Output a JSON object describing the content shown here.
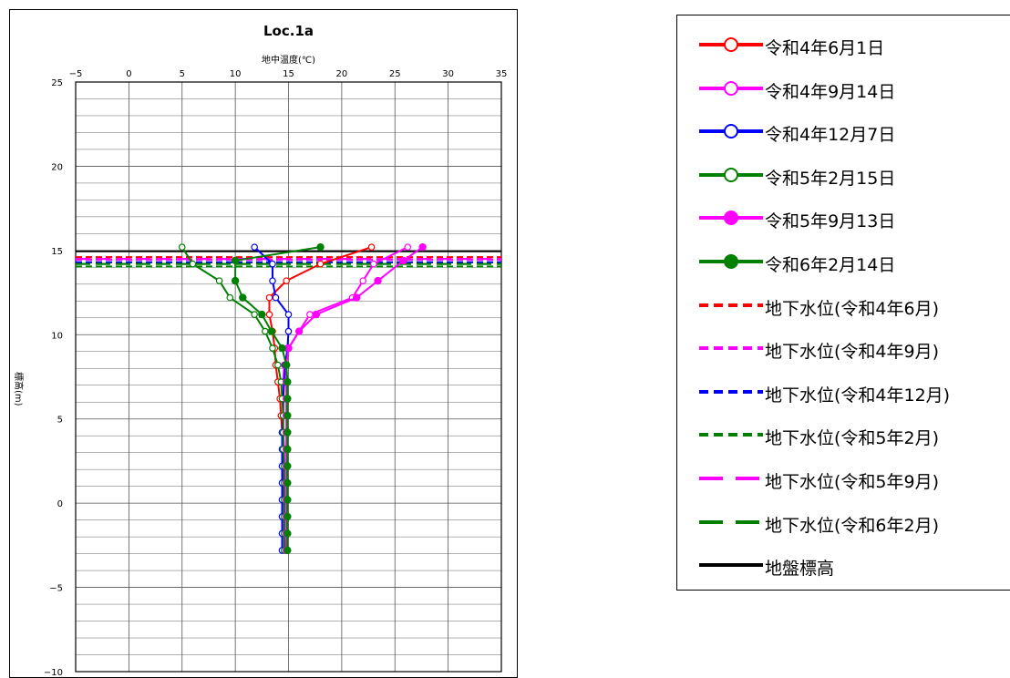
{
  "chart_data": {
    "type": "line",
    "title": "Loc.1a",
    "xlabel": "地中温度(℃)",
    "ylabel": "標高(m)",
    "xlim": [
      -5,
      35
    ],
    "ylim": [
      -10,
      25
    ],
    "x_ticks": [
      "-5",
      "0",
      "5",
      "10",
      "15",
      "20",
      "25",
      "30",
      "35"
    ],
    "y_ticks": [
      "-10",
      "-5",
      "0",
      "5",
      "10",
      "15",
      "20",
      "25"
    ],
    "x_axis_position": "top",
    "grid": true,
    "legend_position": "right-outside",
    "series": [
      {
        "name": "令和4年6月1日",
        "color": "#ff0000",
        "marker": "open-circle",
        "points": [
          [
            22.8,
            15.2
          ],
          [
            18,
            14.2
          ],
          [
            14.8,
            13.2
          ],
          [
            13.2,
            12.2
          ],
          [
            13.2,
            11.2
          ],
          [
            13.5,
            10.2
          ],
          [
            13.7,
            9.2
          ],
          [
            13.8,
            8.2
          ],
          [
            14,
            7.2
          ],
          [
            14.2,
            6.2
          ],
          [
            14.3,
            5.2
          ],
          [
            14.4,
            4.2
          ],
          [
            14.5,
            3.2
          ],
          [
            14.5,
            2.2
          ],
          [
            14.5,
            1.2
          ],
          [
            14.6,
            0.2
          ],
          [
            14.6,
            -0.8
          ],
          [
            14.6,
            -1.8
          ],
          [
            14.7,
            -2.8
          ]
        ]
      },
      {
        "name": "令和4年9月14日",
        "color": "#ff00ff",
        "marker": "open-circle",
        "points": [
          [
            26.2,
            15.2
          ],
          [
            23,
            14.2
          ],
          [
            22,
            13.2
          ],
          [
            21,
            12.2
          ],
          [
            17,
            11.2
          ],
          [
            16,
            10.2
          ],
          [
            15,
            9.2
          ],
          [
            14.6,
            8.2
          ],
          [
            14.5,
            7.2
          ],
          [
            14.5,
            6.2
          ],
          [
            14.5,
            5.2
          ],
          [
            14.5,
            4.2
          ],
          [
            14.6,
            3.2
          ],
          [
            14.6,
            2.2
          ],
          [
            14.6,
            1.2
          ],
          [
            14.6,
            0.2
          ],
          [
            14.6,
            -0.8
          ],
          [
            14.6,
            -1.8
          ],
          [
            14.6,
            -2.8
          ]
        ]
      },
      {
        "name": "令和4年12月7日",
        "color": "#0000ff",
        "marker": "open-circle",
        "points": [
          [
            11.8,
            15.2
          ],
          [
            13.5,
            14.2
          ],
          [
            13.5,
            13.2
          ],
          [
            13.8,
            12.2
          ],
          [
            15,
            11.2
          ],
          [
            15,
            10.2
          ],
          [
            14.9,
            9.2
          ],
          [
            14.7,
            8.2
          ],
          [
            14.6,
            7.2
          ],
          [
            14.5,
            6.2
          ],
          [
            14.5,
            5.2
          ],
          [
            14.4,
            4.2
          ],
          [
            14.4,
            3.2
          ],
          [
            14.4,
            2.2
          ],
          [
            14.4,
            1.2
          ],
          [
            14.4,
            0.2
          ],
          [
            14.4,
            -0.8
          ],
          [
            14.4,
            -1.8
          ],
          [
            14.4,
            -2.8
          ]
        ]
      },
      {
        "name": "令和5年2月15日",
        "color": "#008000",
        "marker": "open-circle",
        "points": [
          [
            5,
            15.2
          ],
          [
            6,
            14.2
          ],
          [
            8.5,
            13.2
          ],
          [
            9.5,
            12.2
          ],
          [
            11.8,
            11.2
          ],
          [
            12.8,
            10.2
          ],
          [
            13.5,
            9.2
          ],
          [
            14,
            8.2
          ],
          [
            14.3,
            7.2
          ],
          [
            14.4,
            6.2
          ],
          [
            14.5,
            5.2
          ],
          [
            14.5,
            4.2
          ],
          [
            14.5,
            3.2
          ],
          [
            14.6,
            2.2
          ],
          [
            14.6,
            1.2
          ],
          [
            14.6,
            0.2
          ],
          [
            14.6,
            -0.8
          ],
          [
            14.6,
            -1.8
          ],
          [
            14.6,
            -2.8
          ]
        ]
      },
      {
        "name": "令和5年9月13日",
        "color": "#ff00ff",
        "marker": "filled-circle",
        "points": [
          [
            27.6,
            15.2
          ],
          [
            25.8,
            14.4
          ],
          [
            23.4,
            13.2
          ],
          [
            21.4,
            12.2
          ],
          [
            17.6,
            11.2
          ],
          [
            16,
            10.2
          ],
          [
            15,
            9.2
          ],
          [
            14.8,
            8.2
          ],
          [
            14.8,
            7.2
          ],
          [
            14.8,
            6.2
          ],
          [
            14.8,
            5.2
          ],
          [
            14.8,
            4.2
          ],
          [
            14.8,
            3.2
          ],
          [
            14.8,
            2.2
          ],
          [
            14.8,
            1.2
          ],
          [
            14.8,
            0.2
          ],
          [
            14.8,
            -0.8
          ],
          [
            14.8,
            -1.8
          ],
          [
            14.8,
            -2.8
          ]
        ]
      },
      {
        "name": "令和6年2月14日",
        "color": "#008000",
        "marker": "filled-circle",
        "points": [
          [
            18,
            15.2
          ],
          [
            10,
            14.4
          ],
          [
            10,
            13.2
          ],
          [
            10.7,
            12.2
          ],
          [
            12.5,
            11.2
          ],
          [
            13.4,
            10.2
          ],
          [
            14.4,
            9.2
          ],
          [
            14.8,
            8.2
          ],
          [
            14.9,
            7.2
          ],
          [
            14.9,
            6.2
          ],
          [
            14.9,
            5.2
          ],
          [
            14.9,
            4.2
          ],
          [
            14.9,
            3.2
          ],
          [
            14.9,
            2.2
          ],
          [
            14.9,
            1.2
          ],
          [
            14.9,
            0.2
          ],
          [
            14.9,
            -0.8
          ],
          [
            14.9,
            -1.8
          ],
          [
            14.9,
            -2.8
          ]
        ]
      }
    ],
    "hlines": [
      {
        "name": "地下水位(令和4年6月)",
        "y": 14.6,
        "color": "#ff0000",
        "style": "dash"
      },
      {
        "name": "地下水位(令和4年9月)",
        "y": 14.45,
        "color": "#ff00ff",
        "style": "dash"
      },
      {
        "name": "地下水位(令和4年12月)",
        "y": 14.3,
        "color": "#0000ff",
        "style": "dash"
      },
      {
        "name": "地下水位(令和5年2月)",
        "y": 14.05,
        "color": "#008000",
        "style": "dash"
      },
      {
        "name": "地下水位(令和5年9月)",
        "y": 14.5,
        "color": "#ff00ff",
        "style": "longdash"
      },
      {
        "name": "地下水位(令和6年2月)",
        "y": 14.2,
        "color": "#008000",
        "style": "longdash"
      },
      {
        "name": "地盤標高",
        "y": 14.95,
        "color": "#000000",
        "style": "solid"
      }
    ]
  }
}
